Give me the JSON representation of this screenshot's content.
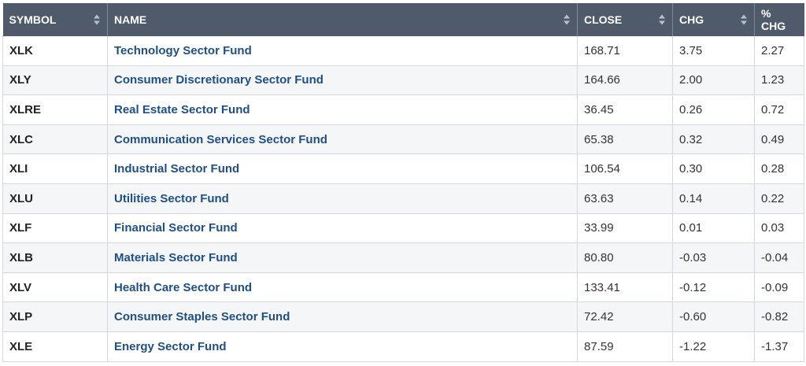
{
  "headers": {
    "symbol": "SYMBOL",
    "name": "NAME",
    "close": "CLOSE",
    "chg": "CHG",
    "pct_chg": "% CHG"
  },
  "rows": [
    {
      "symbol": "XLK",
      "name": "Technology Sector Fund",
      "close": "168.71",
      "chg": "3.75",
      "pct_chg": "2.27"
    },
    {
      "symbol": "XLY",
      "name": "Consumer Discretionary Sector Fund",
      "close": "164.66",
      "chg": "2.00",
      "pct_chg": "1.23"
    },
    {
      "symbol": "XLRE",
      "name": "Real Estate Sector Fund",
      "close": "36.45",
      "chg": "0.26",
      "pct_chg": "0.72"
    },
    {
      "symbol": "XLC",
      "name": "Communication Services Sector Fund",
      "close": "65.38",
      "chg": "0.32",
      "pct_chg": "0.49"
    },
    {
      "symbol": "XLI",
      "name": "Industrial Sector Fund",
      "close": "106.54",
      "chg": "0.30",
      "pct_chg": "0.28"
    },
    {
      "symbol": "XLU",
      "name": "Utilities Sector Fund",
      "close": "63.63",
      "chg": "0.14",
      "pct_chg": "0.22"
    },
    {
      "symbol": "XLF",
      "name": "Financial Sector Fund",
      "close": "33.99",
      "chg": "0.01",
      "pct_chg": "0.03"
    },
    {
      "symbol": "XLB",
      "name": "Materials Sector Fund",
      "close": "80.80",
      "chg": "-0.03",
      "pct_chg": "-0.04"
    },
    {
      "symbol": "XLV",
      "name": "Health Care Sector Fund",
      "close": "133.41",
      "chg": "-0.12",
      "pct_chg": "-0.09"
    },
    {
      "symbol": "XLP",
      "name": "Consumer Staples Sector Fund",
      "close": "72.42",
      "chg": "-0.60",
      "pct_chg": "-0.82"
    },
    {
      "symbol": "XLE",
      "name": "Energy Sector Fund",
      "close": "87.59",
      "chg": "-1.22",
      "pct_chg": "-1.37"
    }
  ]
}
